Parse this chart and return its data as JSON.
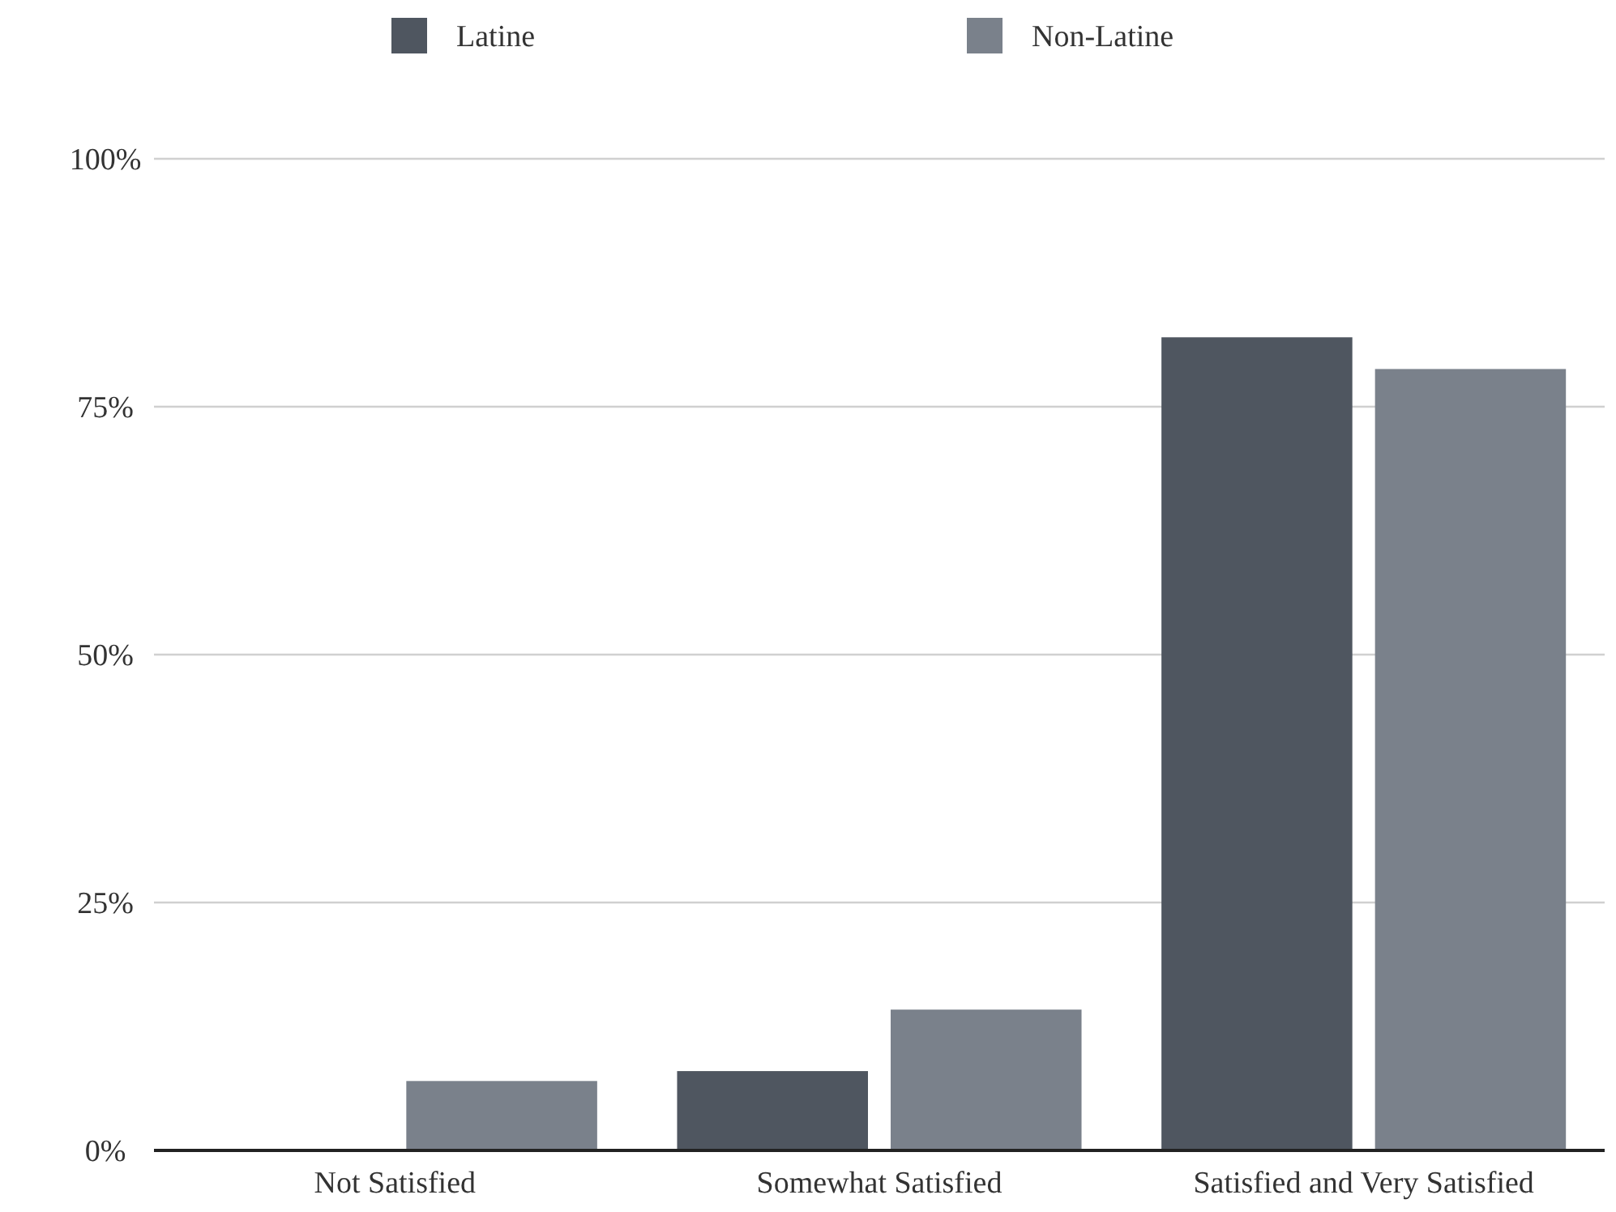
{
  "chart_data": {
    "type": "bar",
    "categories": [
      "Not Satisfied",
      "Somewhat Satisfied",
      "Satisfied and Very Satisfied"
    ],
    "series": [
      {
        "name": "Latine",
        "color": "#4f5660",
        "values": [
          0,
          8,
          82
        ]
      },
      {
        "name": "Non-Latine",
        "color": "#7a818b",
        "values": [
          7,
          14.2,
          78.8
        ]
      }
    ],
    "ylim": [
      0,
      100
    ],
    "yticks": [
      {
        "value": 0,
        "label": "0%"
      },
      {
        "value": 25,
        "label": "25%"
      },
      {
        "value": 50,
        "label": "50%"
      },
      {
        "value": 75,
        "label": "75%"
      },
      {
        "value": 100,
        "label": "100%"
      }
    ],
    "grid": "y",
    "legend": "top"
  }
}
